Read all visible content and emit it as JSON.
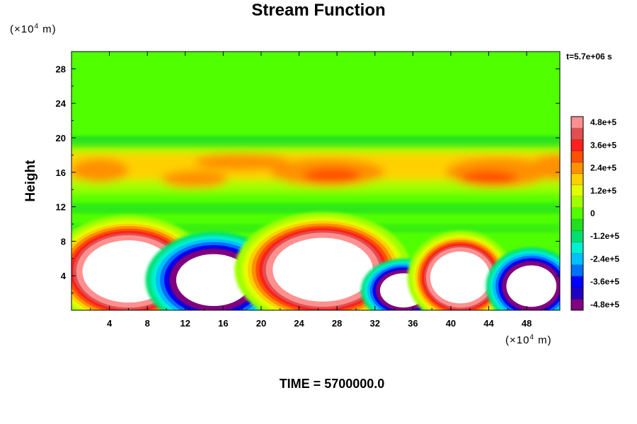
{
  "chart_data": {
    "type": "heatmap",
    "title": "Stream Function",
    "ylabel": "Height",
    "xlabel": "",
    "x_unit": {
      "prefix": "(×10",
      "exponent": "4",
      "suffix": " m)"
    },
    "y_unit": {
      "prefix": "(×10",
      "exponent": "4",
      "suffix": " m)"
    },
    "xlim": [
      0,
      51.5
    ],
    "ylim": [
      0,
      30
    ],
    "x_ticks": [
      4,
      8,
      12,
      16,
      20,
      24,
      28,
      32,
      36,
      40,
      44,
      48
    ],
    "y_ticks": [
      4,
      8,
      12,
      16,
      20,
      24,
      28
    ],
    "time_label": "t=5.7e+06 s",
    "colorbar": {
      "min": -480000,
      "max": 480000,
      "tick_values": [
        480000,
        360000,
        240000,
        120000,
        0,
        -120000,
        -240000,
        -360000,
        -480000
      ],
      "tick_labels": [
        "4.8e+5",
        "3.6e+5",
        "2.4e+5",
        "1.2e+5",
        "0",
        "-1.2e+5",
        "-2.4e+5",
        "-3.6e+5",
        "-4.8e+5"
      ],
      "colors": [
        "#800080",
        "#2000c0",
        "#0000ff",
        "#0070ff",
        "#00c0ff",
        "#00f0d0",
        "#00e070",
        "#20e020",
        "#50ff00",
        "#a0ff00",
        "#e0ff00",
        "#ffd000",
        "#ff9000",
        "#ff5000",
        "#ff2020",
        "#e05050",
        "#ff9090"
      ]
    },
    "features": [
      {
        "kind": "positive-cell",
        "x": 6.0,
        "y": 4.5,
        "rx": 5.5,
        "ry": 4.2
      },
      {
        "kind": "negative-cell",
        "x": 15.0,
        "y": 3.5,
        "rx": 4.5,
        "ry": 3.5
      },
      {
        "kind": "positive-cell",
        "x": 26.5,
        "y": 4.7,
        "rx": 6.0,
        "ry": 4.3
      },
      {
        "kind": "negative-cell",
        "x": 35.0,
        "y": 2.3,
        "rx": 2.8,
        "ry": 2.3
      },
      {
        "kind": "positive-cell",
        "x": 41.0,
        "y": 3.8,
        "rx": 3.6,
        "ry": 3.5
      },
      {
        "kind": "negative-cell",
        "x": 48.5,
        "y": 2.8,
        "rx": 3.0,
        "ry": 2.8
      }
    ],
    "upper_band": {
      "y_bottom": 13.5,
      "y_top": 19.0
    },
    "caption": "TIME = 5700000.0"
  }
}
